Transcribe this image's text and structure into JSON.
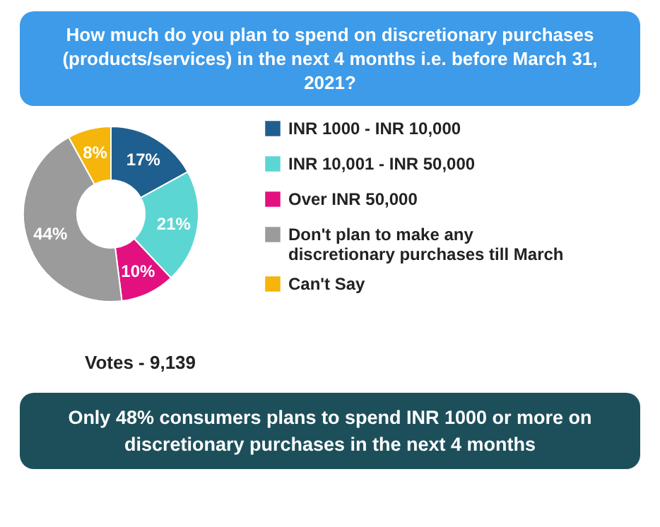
{
  "chart_data": {
    "type": "donut",
    "title": "How much do you plan to spend on discretionary purchases (products/services) in the next 4 months i.e. before March 31, 2021?",
    "categories": [
      "INR 1000 - INR 10,000",
      "INR 10,001 - INR 50,000",
      "Over INR 50,000",
      "Don't plan to make any discretionary purchases till March",
      "Can't Say"
    ],
    "values": [
      17,
      21,
      10,
      44,
      8
    ],
    "value_labels": [
      "17%",
      "21%",
      "10%",
      "44%",
      "8%"
    ],
    "colors": [
      "#1f5f8f",
      "#5cd6d3",
      "#e2117f",
      "#9b9b9b",
      "#f5b50a"
    ],
    "legend": "right",
    "annotations": [
      "Votes - 9,139",
      "Only 48% consumers plans to spend INR 1000 or more on discretionary purchases in the next 4 months"
    ]
  }
}
